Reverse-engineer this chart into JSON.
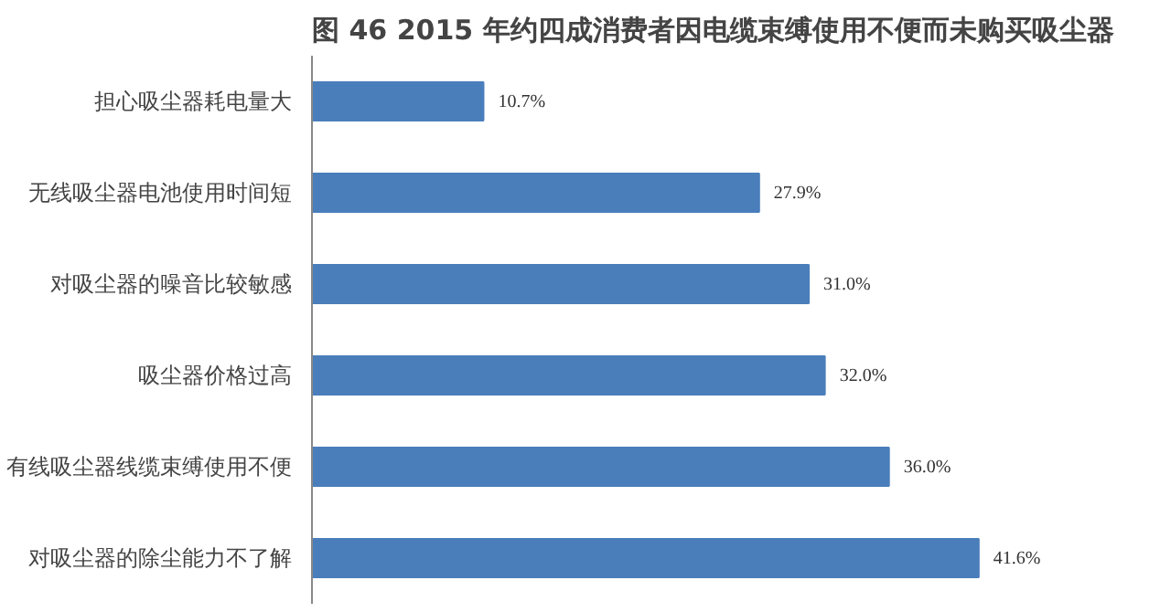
{
  "chart_data": {
    "type": "bar",
    "orientation": "horizontal",
    "title": "图 46 2015 年约四成消费者因电缆束缚使用不便而未购买吸尘器",
    "categories": [
      "担心吸尘器耗电量大",
      "无线吸尘器电池使用时间短",
      "对吸尘器的噪音比较敏感",
      "吸尘器价格过高",
      "有线吸尘器线缆束缚使用不便",
      "对吸尘器的除尘能力不了解"
    ],
    "values": [
      10.7,
      27.9,
      31.0,
      32.0,
      36.0,
      41.6
    ],
    "value_labels": [
      "10.7%",
      "27.9%",
      "31.0%",
      "32.0%",
      "36.0%",
      "41.6%"
    ],
    "color": "#4a7ebb",
    "grid": false
  }
}
